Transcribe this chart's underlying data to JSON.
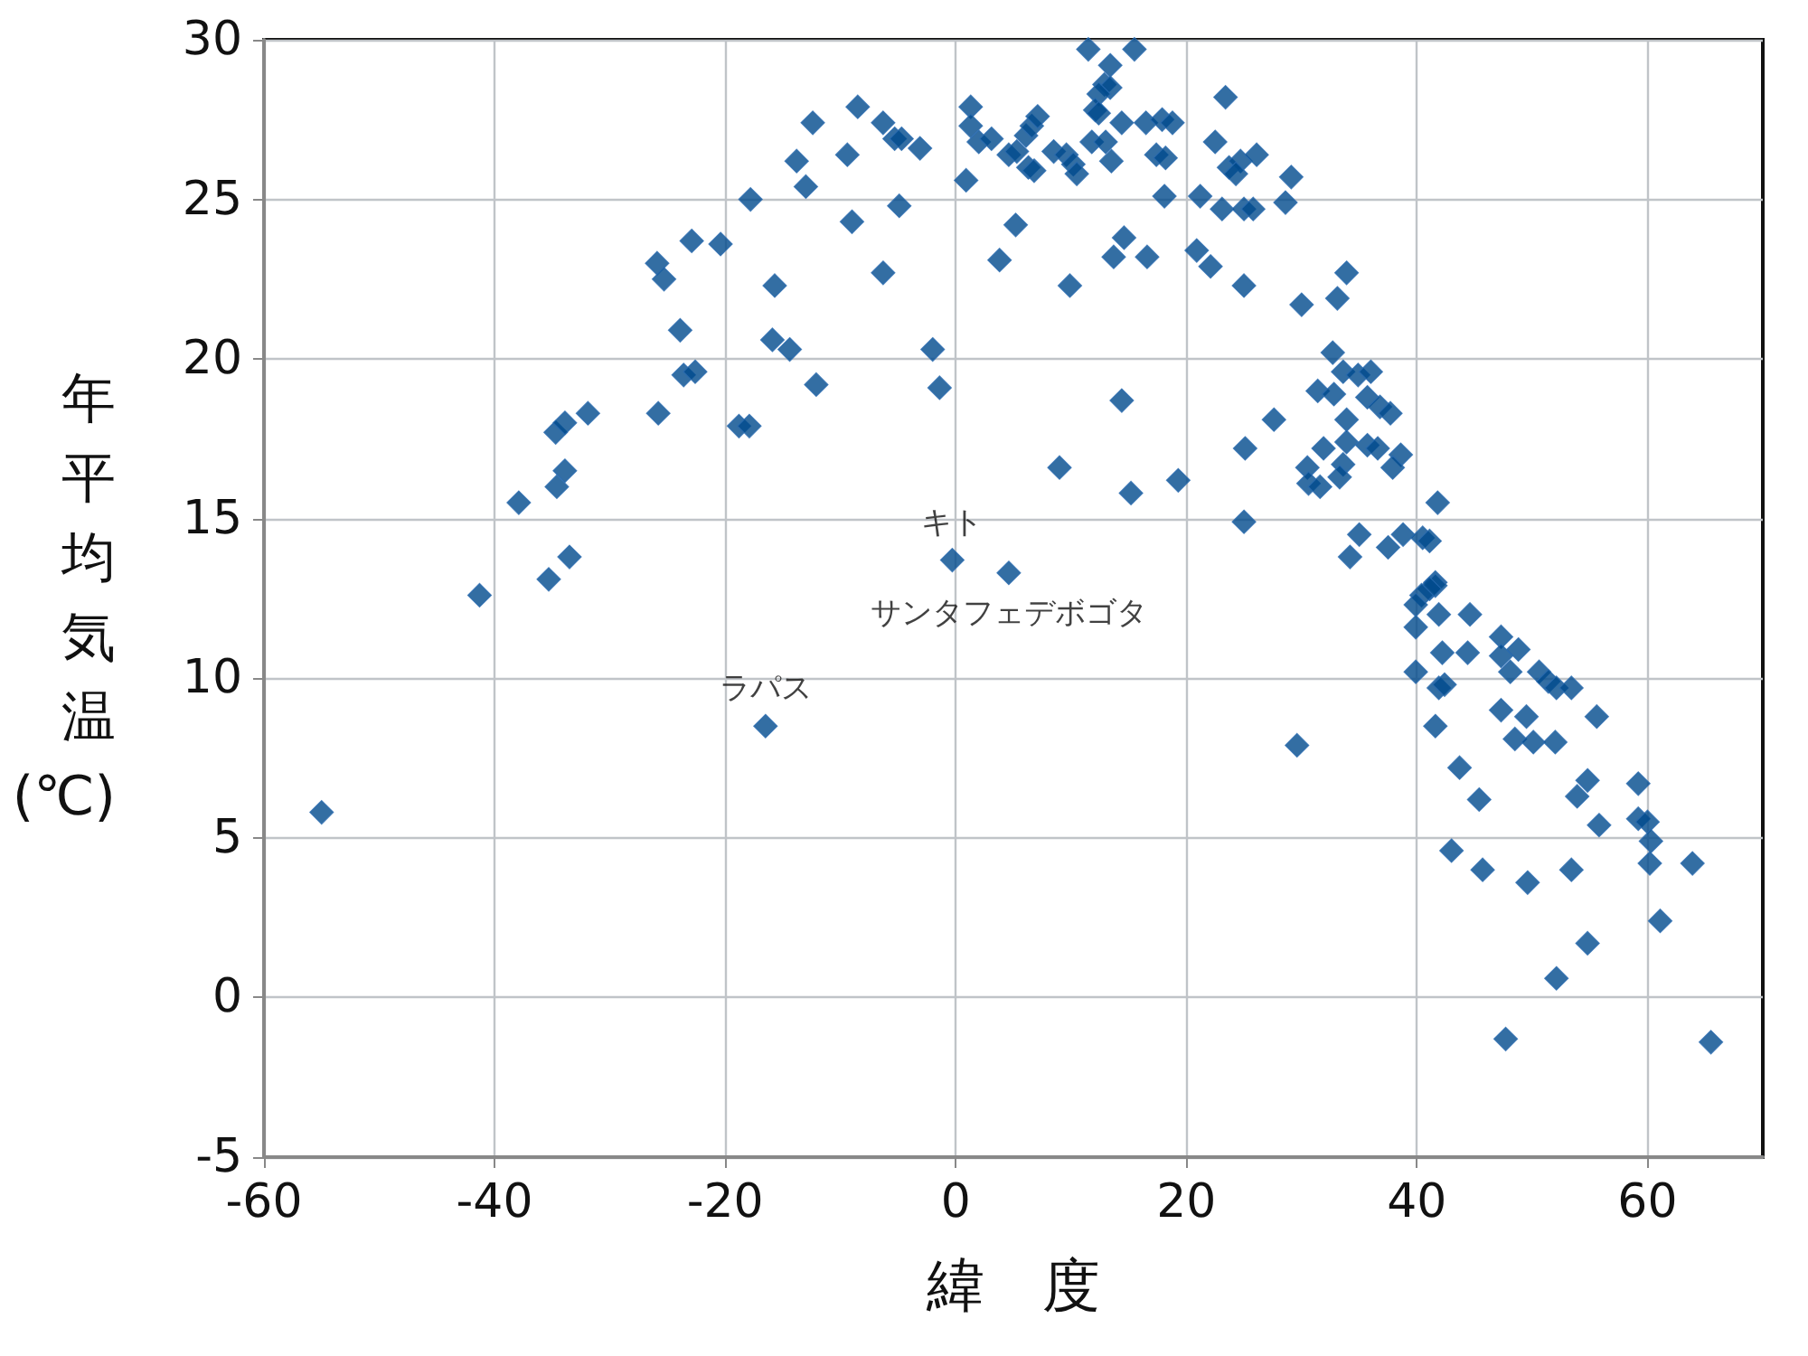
{
  "chart_data": {
    "type": "scatter",
    "xlabel": "緯　度",
    "ylabel": "年平均気温(℃)",
    "xlim": [
      -60,
      70
    ],
    "xticks": [
      -60,
      -40,
      -20,
      0,
      20,
      40,
      60
    ],
    "ylim": [
      -5,
      30
    ],
    "yticks": [
      -5,
      0,
      5,
      10,
      15,
      20,
      25,
      30
    ],
    "grid": true,
    "marker": "diamond",
    "series": [
      {
        "color": "#004a8c",
        "x": [
          -55,
          -41.3,
          -37.9,
          -35.3,
          -33.5,
          -34.7,
          -33.9,
          -33.9,
          -34.6,
          -31.9,
          -25.8,
          -23.6,
          -22.6,
          -23.9,
          -25.9,
          -25.3,
          -22.9,
          -20.4,
          -17.8,
          -18.8,
          -17.9,
          -15.7,
          -15.9,
          -14.4,
          -12.1,
          -13.8,
          -13.0,
          -12.4,
          -8.5,
          -6.3,
          -5.3,
          -4.7,
          -3.1,
          -9.4,
          -9.0,
          -4.9,
          -6.3,
          -2.0,
          -1.4,
          -0.3,
          4.6,
          -16.5,
          1.3,
          1.3,
          2.0,
          3.1,
          0.9,
          5.2,
          3.8,
          4.6,
          5.3,
          6.1,
          6.6,
          7.1,
          6.3,
          6.8,
          8.5,
          9.6,
          10.2,
          10.5,
          11.5,
          15.5,
          13.4,
          12.9,
          13.4,
          12.4,
          12.1,
          12.4,
          11.8,
          13.0,
          13.5,
          14.4,
          16.5,
          17.9,
          18.8,
          17.4,
          18.2,
          18.1,
          14.6,
          13.7,
          16.6,
          9.9,
          14.4,
          9.0,
          15.2,
          19.3,
          23.4,
          22.5,
          23.7,
          24.7,
          24.3,
          26.1,
          21.2,
          23.1,
          25.0,
          25.8,
          20.9,
          22.1,
          25.0,
          25.1,
          25.0,
          29.1,
          28.6,
          33.9,
          30.0,
          33.1,
          32.7,
          33.6,
          34.9,
          36.0,
          31.4,
          32.8,
          35.7,
          36.8,
          37.7,
          27.6,
          33.9,
          33.9,
          35.7,
          36.6,
          38.6,
          37.9,
          31.9,
          33.6,
          33.3,
          30.5,
          30.6,
          31.6,
          41.8,
          35.0,
          38.8,
          37.5,
          34.2,
          40.5,
          41.1,
          41.6,
          41.6,
          41.1,
          40.4,
          39.9,
          41.9,
          44.6,
          39.9,
          47.3,
          42.2,
          44.4,
          47.3,
          48.8,
          48.1,
          39.9,
          50.6,
          51.4,
          52.1,
          53.4,
          41.9,
          42.4,
          47.3,
          49.5,
          48.5,
          50.1,
          52.0,
          55.6,
          41.6,
          43.7,
          45.4,
          54.8,
          53.9,
          55.8,
          59.2,
          59.2,
          60.0,
          60.3,
          60.2,
          63.9,
          43.0,
          45.7,
          49.6,
          53.4,
          61.1,
          54.8,
          52.1,
          47.7,
          65.5,
          29.6
        ],
        "values": [
          5.8,
          12.6,
          15.5,
          13.1,
          13.8,
          17.7,
          18.0,
          16.5,
          16.0,
          18.3,
          18.3,
          19.5,
          19.6,
          20.9,
          23.0,
          22.5,
          23.7,
          23.6,
          25.0,
          17.9,
          17.9,
          22.3,
          20.6,
          20.3,
          19.2,
          26.2,
          25.4,
          27.4,
          27.9,
          27.4,
          26.9,
          26.9,
          26.6,
          26.4,
          24.3,
          24.8,
          22.7,
          20.3,
          19.1,
          13.7,
          13.3,
          8.5,
          27.9,
          27.3,
          26.8,
          26.9,
          25.6,
          24.2,
          23.1,
          26.4,
          26.5,
          27.0,
          27.3,
          27.6,
          26.0,
          25.9,
          26.5,
          26.4,
          26.1,
          25.8,
          29.7,
          29.7,
          29.2,
          28.6,
          28.5,
          28.3,
          27.8,
          27.7,
          26.8,
          26.8,
          26.2,
          27.4,
          27.4,
          27.5,
          27.4,
          26.4,
          26.3,
          25.1,
          23.8,
          23.2,
          23.2,
          22.3,
          18.7,
          16.6,
          15.8,
          16.2,
          28.2,
          26.8,
          26.0,
          26.2,
          25.8,
          26.4,
          25.1,
          24.7,
          24.7,
          24.7,
          23.4,
          22.9,
          22.3,
          17.2,
          14.9,
          25.7,
          24.9,
          22.7,
          21.7,
          21.9,
          20.2,
          19.6,
          19.5,
          19.6,
          19.0,
          18.9,
          18.8,
          18.5,
          18.3,
          18.1,
          18.1,
          17.4,
          17.3,
          17.2,
          17.0,
          16.6,
          17.2,
          16.7,
          16.3,
          16.6,
          16.1,
          16.0,
          15.5,
          14.5,
          14.5,
          14.1,
          13.8,
          14.4,
          14.3,
          13.0,
          12.9,
          12.8,
          12.6,
          12.3,
          12.0,
          12.0,
          11.6,
          11.3,
          10.8,
          10.8,
          10.7,
          10.9,
          10.2,
          10.2,
          10.2,
          9.9,
          9.7,
          9.7,
          9.7,
          9.8,
          9.0,
          8.8,
          8.1,
          8.0,
          8.0,
          8.8,
          8.5,
          7.2,
          6.2,
          6.8,
          6.3,
          5.4,
          6.7,
          5.6,
          5.5,
          4.9,
          4.2,
          4.2,
          4.6,
          4.0,
          3.6,
          4.0,
          2.4,
          1.7,
          0.6,
          -1.3,
          -1.4,
          7.9
        ]
      }
    ],
    "annotations": [
      {
        "text": "キト",
        "x": -0.3,
        "y": 13.7
      },
      {
        "text": "サンタフェデボゴタ",
        "x": 4.6,
        "y": 13.3
      },
      {
        "text": "ラパス",
        "x": -16.5,
        "y": 8.5
      }
    ]
  }
}
